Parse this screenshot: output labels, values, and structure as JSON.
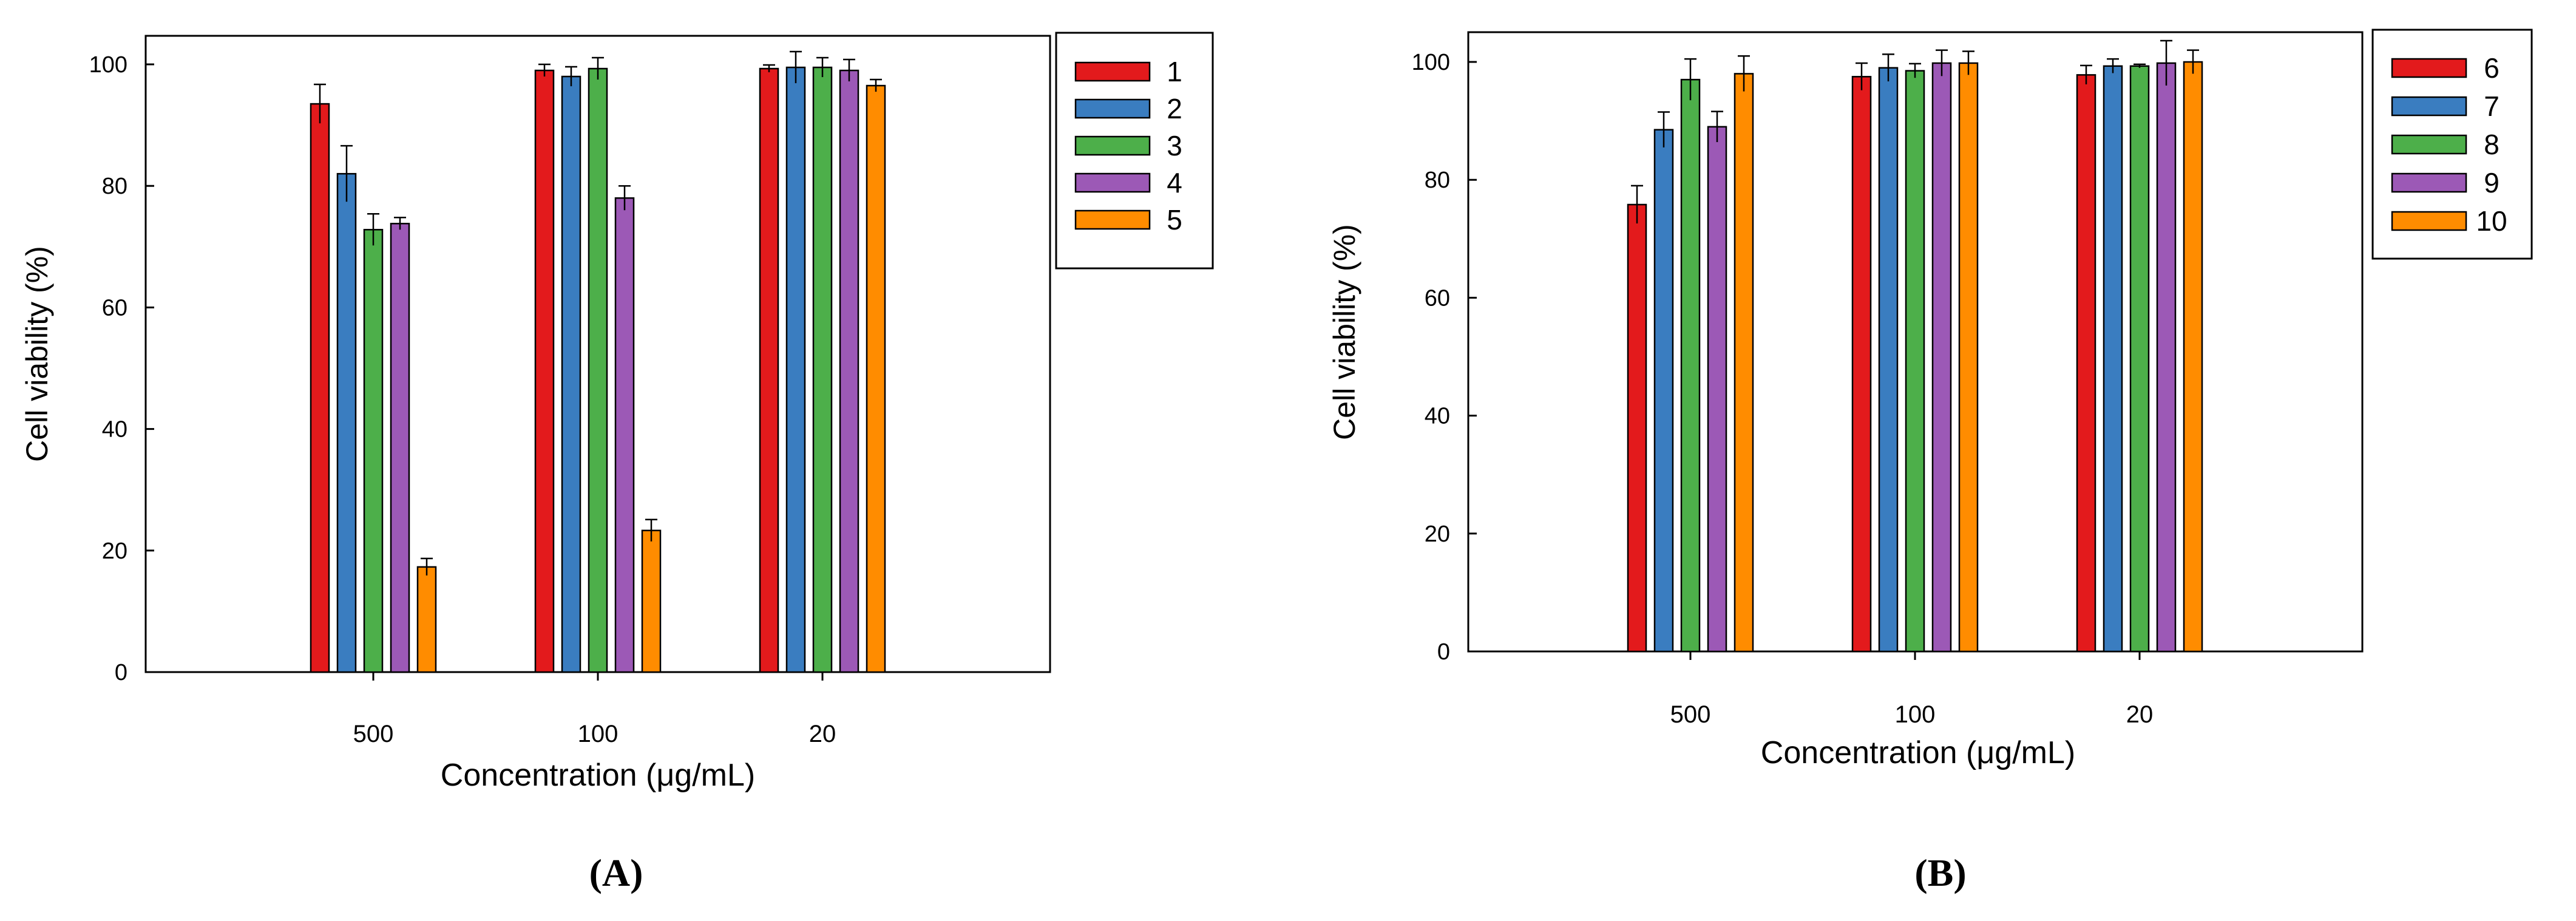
{
  "colors": {
    "series": [
      "#e31a1c",
      "#3a7dc0",
      "#4daf4a",
      "#9c59b6",
      "#ff8c00"
    ],
    "frame": "#000000",
    "background": "#ffffff"
  },
  "chart_data": [
    {
      "type": "bar",
      "panel_label": "(A)",
      "categories": [
        "500",
        "100",
        "20"
      ],
      "series": [
        {
          "name": "1",
          "values": [
            93.5,
            99.0,
            99.3
          ],
          "errors": [
            3.2,
            1.0,
            0.6
          ]
        },
        {
          "name": "2",
          "values": [
            82.0,
            98.0,
            99.5
          ],
          "errors": [
            4.6,
            1.6,
            2.6
          ]
        },
        {
          "name": "3",
          "values": [
            72.8,
            99.3,
            99.5
          ],
          "errors": [
            2.6,
            1.8,
            1.6
          ]
        },
        {
          "name": "4",
          "values": [
            73.8,
            78.0,
            99.0
          ],
          "errors": [
            1.0,
            2.0,
            1.8
          ]
        },
        {
          "name": "5",
          "values": [
            17.3,
            23.3,
            96.5
          ],
          "errors": [
            1.4,
            1.8,
            1.0
          ]
        }
      ],
      "xlabel": "Concentration (μg/mL)",
      "ylabel": "Cell viability (%)",
      "ylim": [
        0,
        105
      ],
      "yticks": [
        "0",
        "20",
        "40",
        "60",
        "80",
        "100"
      ],
      "legend": "top-right, outside"
    },
    {
      "type": "bar",
      "panel_label": "(B)",
      "categories": [
        "500",
        "100",
        "20"
      ],
      "series": [
        {
          "name": "6",
          "values": [
            75.8,
            97.5,
            97.8
          ],
          "errors": [
            3.2,
            2.3,
            1.6
          ]
        },
        {
          "name": "7",
          "values": [
            88.5,
            99.0,
            99.3
          ],
          "errors": [
            3.0,
            2.3,
            1.2
          ]
        },
        {
          "name": "8",
          "values": [
            97.0,
            98.5,
            99.3
          ],
          "errors": [
            3.5,
            1.2,
            0.3
          ]
        },
        {
          "name": "9",
          "values": [
            89.0,
            99.8,
            99.8
          ],
          "errors": [
            2.6,
            2.2,
            3.8
          ]
        },
        {
          "name": "10",
          "values": [
            98.0,
            99.8,
            100.0
          ],
          "errors": [
            3.0,
            2.0,
            2.0
          ]
        }
      ],
      "xlabel": "Concentration (μg/mL)",
      "ylabel": "Cell viability (%)",
      "ylim": [
        0,
        105
      ],
      "yticks": [
        "0",
        "20",
        "40",
        "60",
        "80",
        "100"
      ],
      "legend": "top-right, outside"
    }
  ]
}
